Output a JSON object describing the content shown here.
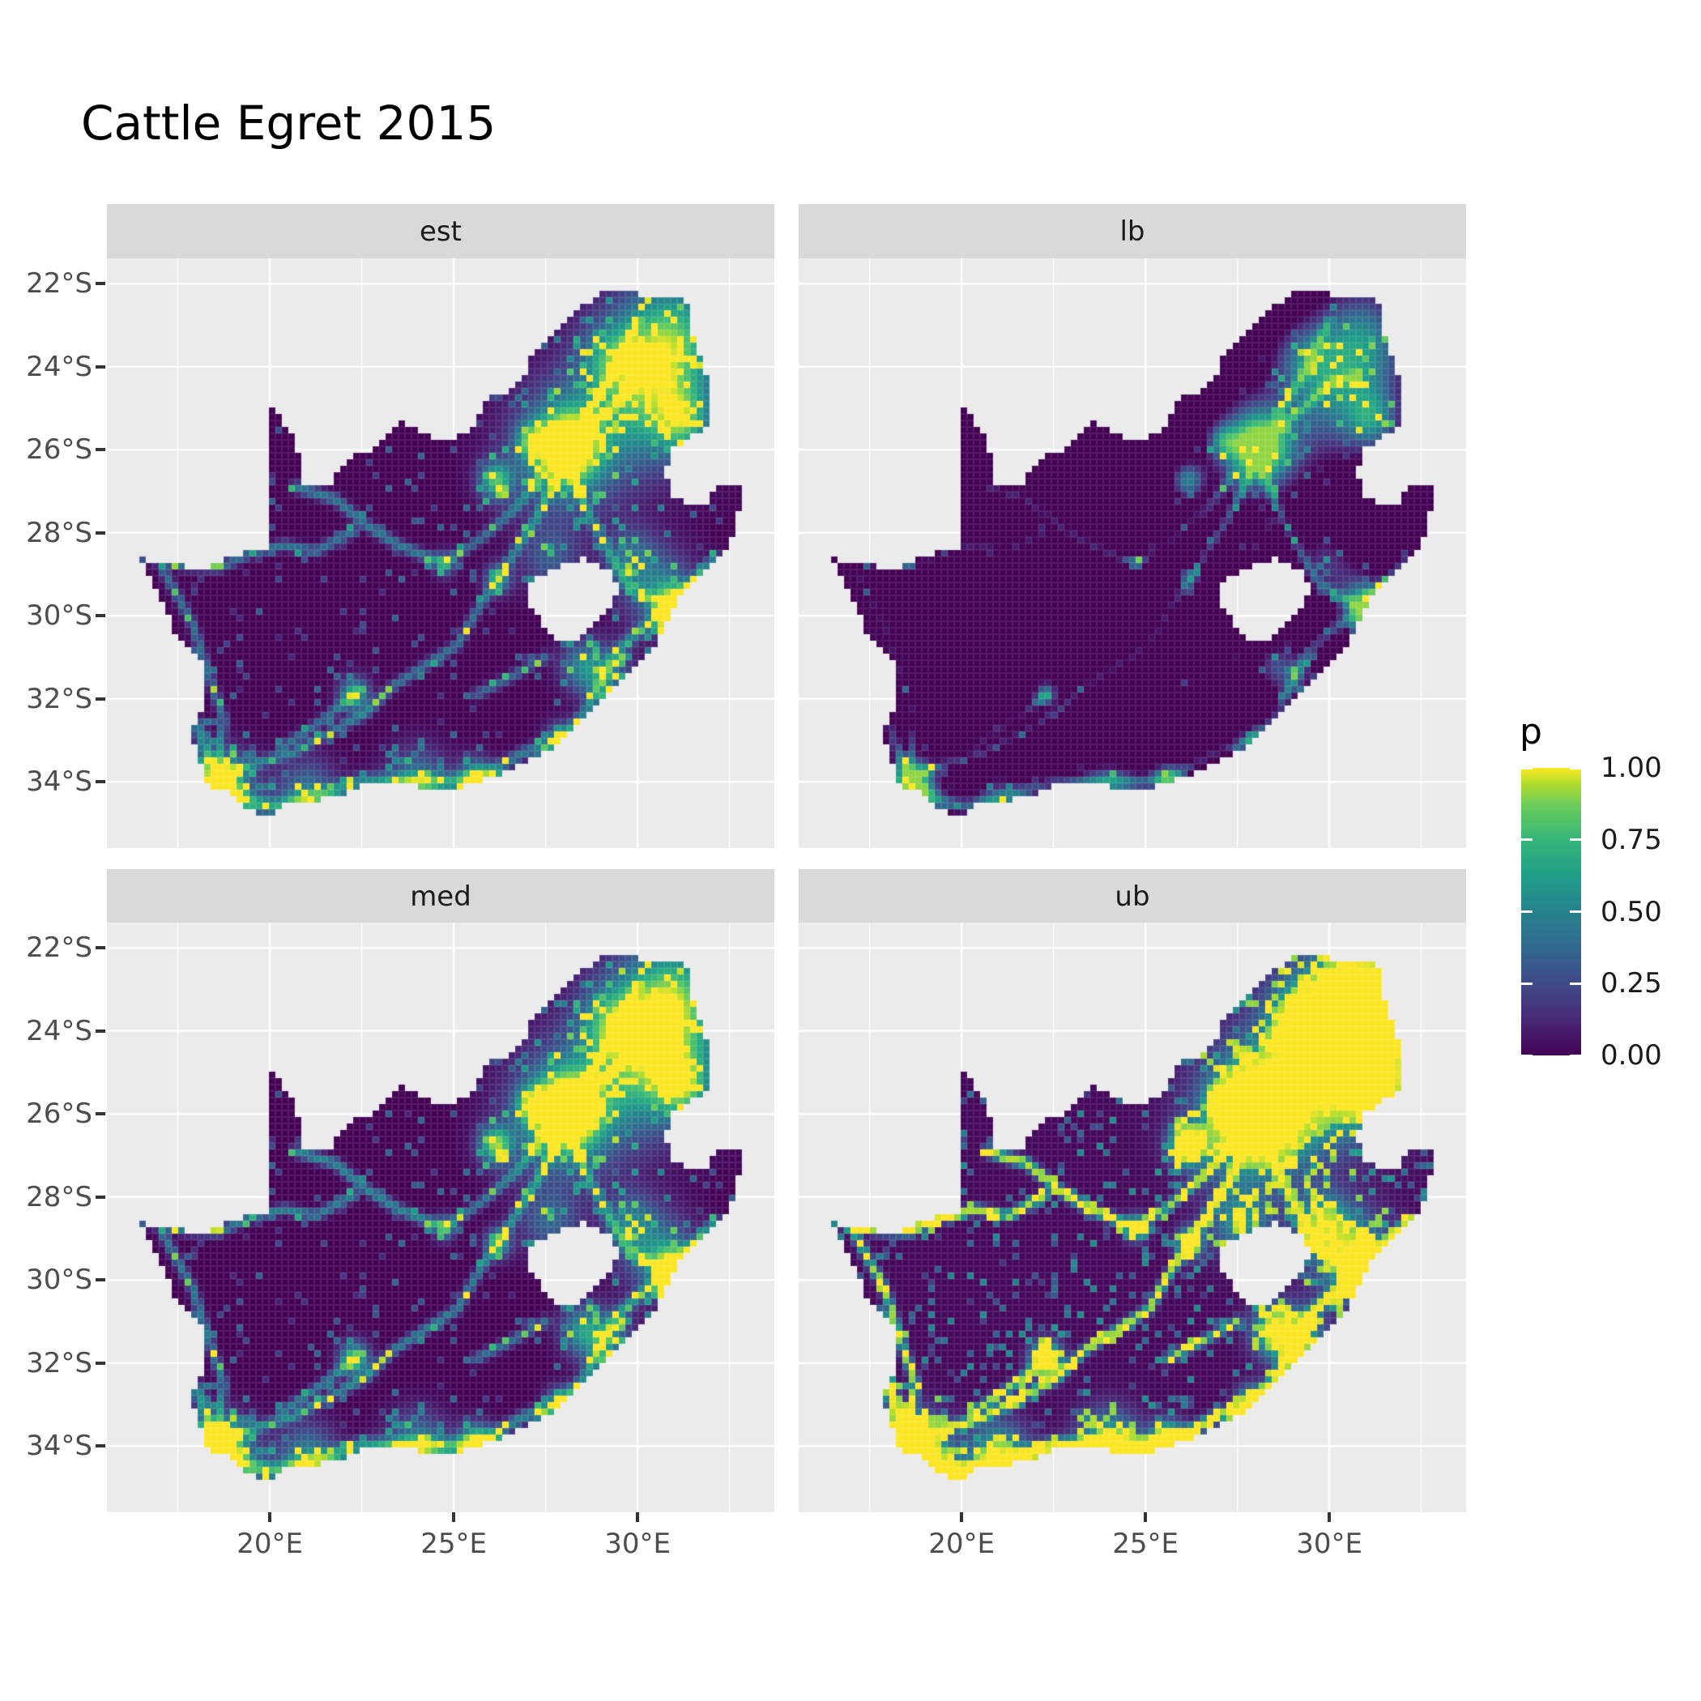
{
  "title": "Cattle Egret 2015",
  "facets": [
    {
      "label": "est",
      "render": {
        "fGain": 1.0,
        "fBias": 0.0,
        "spMul": 1.0,
        "spGain": 1.0,
        "push": 0
      }
    },
    {
      "label": "lb",
      "render": {
        "fGain": 1.0,
        "fBias": -0.34,
        "spMul": 0.4,
        "spGain": 0.6,
        "push": 0
      }
    },
    {
      "label": "med",
      "render": {
        "fGain": 1.14,
        "fBias": 0.0,
        "spMul": 1.08,
        "spGain": 1.05,
        "push": 0
      }
    },
    {
      "label": "ub",
      "render": {
        "fGain": 1.8,
        "fBias": 0.02,
        "spMul": 2.4,
        "spGain": 1.5,
        "push": 0.62
      }
    }
  ],
  "axes": {
    "x_tick_labels": [
      "20°E",
      "25°E",
      "30°E"
    ],
    "x_tick_lons": [
      20,
      25,
      30
    ],
    "x_minor_lons": [
      17.5,
      22.5,
      27.5,
      32.5
    ],
    "y_tick_labels": [
      "22°S",
      "24°S",
      "26°S",
      "28°S",
      "30°S",
      "32°S",
      "34°S"
    ],
    "y_tick_lats": [
      -22,
      -24,
      -26,
      -28,
      -30,
      -32,
      -34
    ]
  },
  "legend": {
    "title": "p",
    "labels": [
      "1.00",
      "0.75",
      "0.50",
      "0.25",
      "0.00"
    ],
    "values": [
      1.0,
      0.75,
      0.5,
      0.25,
      0.0
    ]
  },
  "colors": {
    "panel_bg": "#EBEBEB",
    "strip_bg": "#D9D9D9",
    "grid": "#FFFFFF",
    "tick": "#333333",
    "axis_text": "#4D4D4D",
    "strip_text": "#1A1A1A",
    "title_text": "#000000",
    "viridis": [
      [
        0.0,
        "#440154"
      ],
      [
        0.125,
        "#482878"
      ],
      [
        0.25,
        "#3E4A89"
      ],
      [
        0.375,
        "#31688E"
      ],
      [
        0.5,
        "#26828E"
      ],
      [
        0.625,
        "#1F9E89"
      ],
      [
        0.75,
        "#35B779"
      ],
      [
        0.875,
        "#6DCD59"
      ],
      [
        0.95,
        "#B8DE29"
      ],
      [
        1.0,
        "#FDE725"
      ]
    ]
  },
  "chart_data": {
    "type": "heatmap",
    "title": "Cattle Egret 2015",
    "facet_labels": [
      "est",
      "lb",
      "med",
      "ub"
    ],
    "variable": "p",
    "value_range": [
      0.0,
      1.0
    ],
    "colormap": "viridis",
    "region": "South Africa reporting-rate raster (Lesotho and Eswatini excluded)",
    "x_range_lon_E": [
      15.6,
      33.7
    ],
    "y_range_lat_S": [
      -35.6,
      -21.4
    ],
    "legend_breaks": [
      0.0,
      0.25,
      0.5,
      0.75,
      1.0
    ],
    "facet_summary": {
      "est": "moderate: dark background, teal road network, green/yellow hotspots (Gauteng, Durban, SW Cape, coasts, NE lowveld)",
      "lb": "lower bound: almost entirely dark purple, bright core only at Gauteng plus sparse speckles",
      "med": "median: similar to est with slightly brighter hotspots",
      "ub": "upper bound: large saturated yellow blobs over hotspots, yellow/green networks and coastal rim"
    },
    "geo": {
      "outline": [
        [
          16.45,
          -28.6
        ],
        [
          17.25,
          -28.75
        ],
        [
          18.2,
          -28.85
        ],
        [
          19.2,
          -28.5
        ],
        [
          19.98,
          -28.4
        ],
        [
          19.98,
          -24.85
        ],
        [
          20.55,
          -25.55
        ],
        [
          20.85,
          -26.25
        ],
        [
          20.9,
          -26.85
        ],
        [
          21.6,
          -26.85
        ],
        [
          22.2,
          -26.2
        ],
        [
          22.9,
          -25.95
        ],
        [
          23.5,
          -25.3
        ],
        [
          24.5,
          -25.75
        ],
        [
          25.4,
          -25.65
        ],
        [
          25.75,
          -25.1
        ],
        [
          26.0,
          -24.7
        ],
        [
          26.5,
          -24.6
        ],
        [
          26.9,
          -24.3
        ],
        [
          27.15,
          -23.6
        ],
        [
          27.95,
          -23.05
        ],
        [
          28.35,
          -22.6
        ],
        [
          29.1,
          -22.2
        ],
        [
          29.7,
          -22.15
        ],
        [
          30.3,
          -22.3
        ],
        [
          31.3,
          -22.35
        ],
        [
          31.6,
          -23.6
        ],
        [
          31.95,
          -24.35
        ],
        [
          31.98,
          -25.45
        ],
        [
          31.4,
          -25.7
        ],
        [
          30.95,
          -26.0
        ],
        [
          30.8,
          -26.5
        ],
        [
          30.85,
          -27.0
        ],
        [
          31.25,
          -27.3
        ],
        [
          31.9,
          -27.3
        ],
        [
          32.15,
          -26.85
        ],
        [
          32.9,
          -26.85
        ],
        [
          32.55,
          -28.25
        ],
        [
          31.95,
          -28.75
        ],
        [
          31.1,
          -29.65
        ],
        [
          30.5,
          -30.65
        ],
        [
          29.9,
          -31.2
        ],
        [
          28.85,
          -32.25
        ],
        [
          27.85,
          -33.1
        ],
        [
          26.4,
          -33.8
        ],
        [
          25.65,
          -34.0
        ],
        [
          24.8,
          -34.2
        ],
        [
          23.55,
          -34.05
        ],
        [
          22.5,
          -34.1
        ],
        [
          21.65,
          -34.4
        ],
        [
          20.45,
          -34.5
        ],
        [
          20.0,
          -34.85
        ],
        [
          19.2,
          -34.6
        ],
        [
          18.8,
          -34.1
        ],
        [
          18.35,
          -34.3
        ],
        [
          18.25,
          -33.85
        ],
        [
          17.85,
          -32.75
        ],
        [
          18.3,
          -32.05
        ],
        [
          18.25,
          -31.2
        ],
        [
          17.4,
          -30.35
        ],
        [
          16.9,
          -29.35
        ]
      ],
      "lesotho": [
        [
          28.6,
          -28.6
        ],
        [
          29.2,
          -28.9
        ],
        [
          29.45,
          -29.35
        ],
        [
          29.25,
          -29.8
        ],
        [
          28.8,
          -30.15
        ],
        [
          28.3,
          -30.65
        ],
        [
          27.9,
          -30.6
        ],
        [
          27.5,
          -30.35
        ],
        [
          27.05,
          -29.7
        ],
        [
          27.1,
          -29.2
        ],
        [
          27.6,
          -28.9
        ]
      ],
      "hotspots": [
        [
          28.05,
          -25.95,
          0.85,
          1.05
        ],
        [
          28.1,
          -26.0,
          1.6,
          0.45
        ],
        [
          26.15,
          -26.75,
          0.45,
          0.75
        ],
        [
          27.1,
          -25.8,
          0.4,
          0.5
        ],
        [
          30.95,
          -29.75,
          0.5,
          0.85
        ],
        [
          30.6,
          -29.4,
          1.0,
          0.4
        ],
        [
          18.65,
          -33.95,
          0.55,
          0.9
        ],
        [
          18.8,
          -34.3,
          0.9,
          0.5
        ],
        [
          22.3,
          -31.9,
          0.4,
          0.7
        ],
        [
          25.62,
          -33.9,
          0.45,
          0.7
        ],
        [
          27.9,
          -33.0,
          0.4,
          0.6
        ],
        [
          26.2,
          -29.12,
          0.35,
          0.55
        ],
        [
          24.75,
          -28.75,
          0.3,
          0.45
        ],
        [
          30.3,
          -24.7,
          1.5,
          0.5
        ],
        [
          30.9,
          -23.2,
          1.2,
          0.5
        ],
        [
          29.3,
          -23.8,
          0.8,
          0.4
        ],
        [
          31.2,
          -25.3,
          0.7,
          0.5
        ],
        [
          30.6,
          -24.0,
          2.0,
          0.3
        ],
        [
          27.6,
          -28.6,
          0.8,
          0.3
        ],
        [
          29.8,
          -28.6,
          0.7,
          0.35
        ],
        [
          28.5,
          -31.2,
          0.6,
          0.45
        ],
        [
          29.2,
          -31.5,
          0.7,
          0.4
        ],
        [
          24.0,
          -34.05,
          0.8,
          0.5
        ],
        [
          21.0,
          -34.3,
          0.8,
          0.45
        ]
      ],
      "roads": [
        {
          "s": 0.42,
          "w": 0.13,
          "pts": [
            [
              18.7,
              -33.85
            ],
            [
              19.45,
              -33.6
            ],
            [
              20.6,
              -33.3
            ],
            [
              22.6,
              -32.35
            ],
            [
              23.35,
              -31.7
            ],
            [
              24.4,
              -31.1
            ],
            [
              25.1,
              -30.7
            ],
            [
              25.65,
              -29.85
            ],
            [
              26.2,
              -29.12
            ],
            [
              26.85,
              -28.2
            ],
            [
              27.25,
              -27.65
            ],
            [
              27.65,
              -26.9
            ],
            [
              28.05,
              -26.2
            ]
          ]
        },
        {
          "s": 0.45,
          "w": 0.16,
          "pts": [
            [
              25.7,
              -33.9
            ],
            [
              26.9,
              -33.3
            ],
            [
              27.9,
              -33.0
            ],
            [
              28.6,
              -32.3
            ],
            [
              29.4,
              -30.9
            ],
            [
              30.0,
              -30.4
            ],
            [
              30.9,
              -29.85
            ]
          ]
        },
        {
          "s": 0.42,
          "w": 0.13,
          "pts": [
            [
              30.9,
              -29.8
            ],
            [
              30.3,
              -29.55
            ],
            [
              29.7,
              -29.2
            ],
            [
              29.1,
              -28.3
            ],
            [
              28.7,
              -27.6
            ],
            [
              28.35,
              -26.9
            ],
            [
              28.1,
              -26.3
            ]
          ]
        },
        {
          "s": 0.45,
          "w": 0.14,
          "pts": [
            [
              20.7,
              -26.9
            ],
            [
              21.8,
              -27.2
            ],
            [
              22.6,
              -27.8
            ],
            [
              23.5,
              -28.3
            ],
            [
              24.75,
              -28.75
            ]
          ]
        },
        {
          "s": 0.42,
          "w": 0.13,
          "pts": [
            [
              19.6,
              -28.45
            ],
            [
              20.4,
              -28.3
            ],
            [
              21.25,
              -28.45
            ],
            [
              22.3,
              -27.95
            ]
          ]
        },
        {
          "s": 0.4,
          "w": 0.13,
          "pts": [
            [
              16.6,
              -28.6
            ],
            [
              17.6,
              -28.8
            ],
            [
              18.6,
              -28.85
            ],
            [
              19.6,
              -28.45
            ]
          ]
        },
        {
          "s": 0.4,
          "w": 0.13,
          "pts": [
            [
              18.55,
              -33.5
            ],
            [
              18.75,
              -32.5
            ],
            [
              18.4,
              -31.6
            ],
            [
              17.9,
              -30.2
            ],
            [
              17.1,
              -28.9
            ]
          ]
        },
        {
          "s": 0.38,
          "w": 0.13,
          "pts": [
            [
              24.75,
              -28.75
            ],
            [
              25.8,
              -28.1
            ],
            [
              26.7,
              -27.4
            ],
            [
              27.4,
              -26.6
            ]
          ]
        },
        {
          "s": 0.4,
          "w": 0.13,
          "pts": [
            [
              28.3,
              -25.7
            ],
            [
              29.3,
              -25.0
            ],
            [
              30.0,
              -24.4
            ],
            [
              30.8,
              -24.2
            ]
          ]
        },
        {
          "s": 0.38,
          "w": 0.13,
          "pts": [
            [
              28.3,
              -25.75
            ],
            [
              29.45,
              -23.9
            ],
            [
              30.0,
              -22.9
            ]
          ]
        },
        {
          "s": 0.45,
          "w": 0.15,
          "pts": [
            [
              30.7,
              -30.4
            ],
            [
              31.1,
              -29.5
            ],
            [
              31.7,
              -29.0
            ],
            [
              32.1,
              -28.6
            ]
          ]
        },
        {
          "s": 0.4,
          "w": 0.13,
          "pts": [
            [
              22.3,
              -31.9
            ],
            [
              21.3,
              -32.6
            ],
            [
              20.3,
              -33.2
            ]
          ]
        },
        {
          "s": 0.36,
          "w": 0.13,
          "pts": [
            [
              25.6,
              -31.9
            ],
            [
              26.5,
              -31.5
            ],
            [
              27.5,
              -31.0
            ]
          ]
        },
        {
          "s": 0.52,
          "w": 0.2,
          "pts": [
            [
              18.5,
              -34.1
            ],
            [
              19.5,
              -34.5
            ],
            [
              20.2,
              -34.6
            ],
            [
              21.5,
              -34.3
            ],
            [
              22.5,
              -34.0
            ],
            [
              23.8,
              -34.0
            ],
            [
              25.0,
              -34.0
            ],
            [
              25.7,
              -33.9
            ]
          ]
        },
        {
          "s": 0.5,
          "w": 0.18,
          "pts": [
            [
              18.0,
              -32.6
            ],
            [
              18.3,
              -33.3
            ],
            [
              18.6,
              -33.9
            ]
          ]
        }
      ]
    }
  }
}
